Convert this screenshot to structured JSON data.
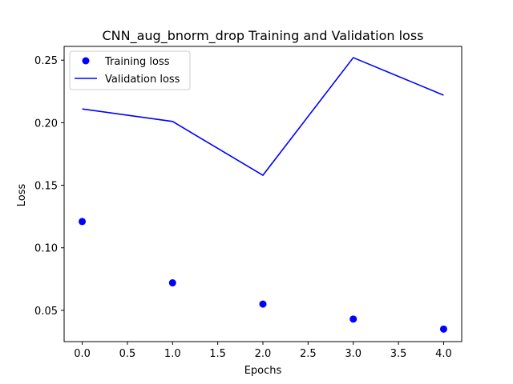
{
  "chart_data": {
    "type": "line",
    "title": "CNN_aug_bnorm_drop Training and Validation loss",
    "xlabel": "Epochs",
    "ylabel": "Loss",
    "x": [
      0,
      1,
      2,
      3,
      4
    ],
    "xlim": [
      -0.2,
      4.2
    ],
    "ylim": [
      0.025,
      0.261
    ],
    "xticks": [
      0.0,
      0.5,
      1.0,
      1.5,
      2.0,
      2.5,
      3.0,
      3.5,
      4.0
    ],
    "xtick_labels": [
      "0.0",
      "0.5",
      "1.0",
      "1.5",
      "2.0",
      "2.5",
      "3.0",
      "3.5",
      "4.0"
    ],
    "yticks": [
      0.05,
      0.1,
      0.15,
      0.2,
      0.25
    ],
    "ytick_labels": [
      "0.05",
      "0.10",
      "0.15",
      "0.20",
      "0.25"
    ],
    "grid": false,
    "legend_position": "top-left",
    "series": [
      {
        "name": "Training loss",
        "style": "points",
        "color": "#0000ff",
        "values": [
          0.121,
          0.072,
          0.055,
          0.043,
          0.035
        ]
      },
      {
        "name": "Validation loss",
        "style": "line",
        "color": "#0000ff",
        "values": [
          0.211,
          0.201,
          0.158,
          0.252,
          0.222
        ]
      }
    ]
  }
}
